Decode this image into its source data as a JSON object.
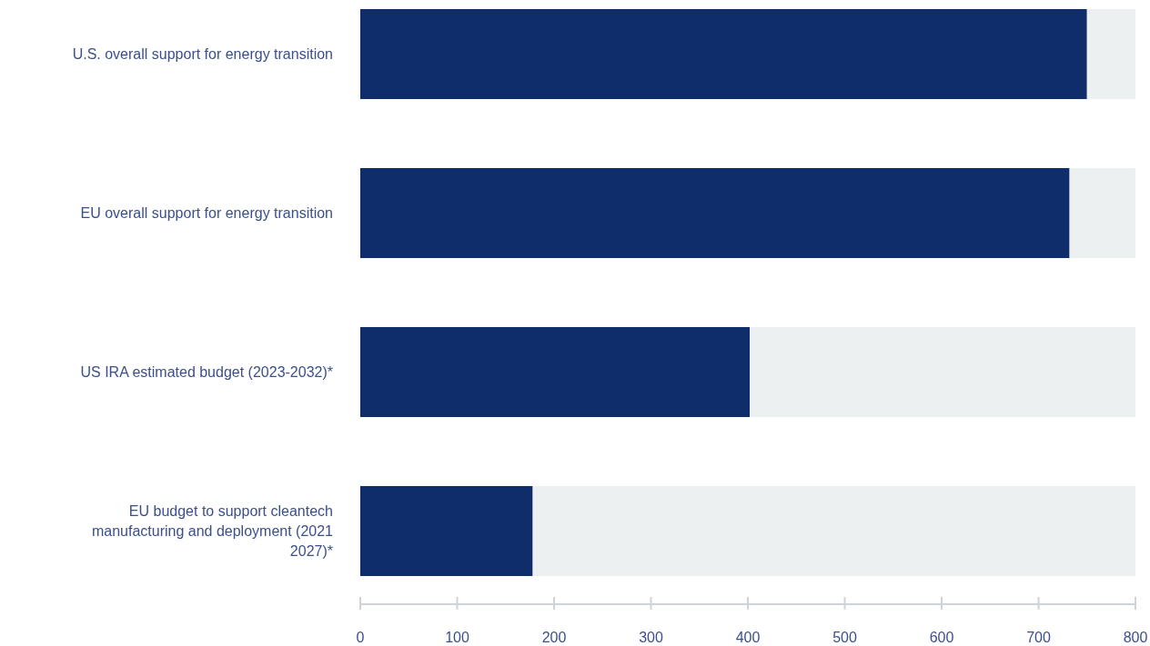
{
  "chart_data": {
    "type": "bar",
    "orientation": "horizontal",
    "stacked": true,
    "categories": [
      "U.S. overall support for energy transition",
      "EU overall support for energy transition",
      "US IRA estimated budget (2023-2032)*",
      "EU budget to support cleantech manufacturing and deployment (2021 2027)*"
    ],
    "series": [
      {
        "color": "#0f2c6b",
        "values": [
          750,
          732,
          402,
          178
        ]
      },
      {
        "color": "#edf0f0",
        "values": [
          50,
          68,
          398,
          622
        ]
      }
    ],
    "xlim": [
      0,
      800
    ],
    "xticks": [
      0,
      100,
      200,
      300,
      400,
      500,
      600,
      700,
      800
    ],
    "grid": false
  }
}
